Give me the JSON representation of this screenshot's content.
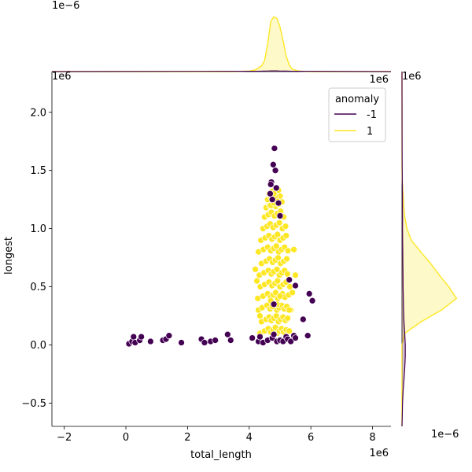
{
  "chart_data": {
    "type": "scatter",
    "kind": "jointplot",
    "xlabel": "total_length",
    "ylabel": "longest",
    "x_offset_text": "1e6",
    "y_offset_text": "1e6",
    "top_marginal_offset_text": "1e−6",
    "right_marginal_offset_text": "1e−6",
    "xlim": [
      -2.4,
      8.6
    ],
    "ylim": [
      -0.7,
      2.35
    ],
    "x_ticks": [
      -2,
      0,
      2,
      4,
      6,
      8
    ],
    "x_tick_labels": [
      "−2",
      "0",
      "2",
      "4",
      "6",
      "8"
    ],
    "y_ticks": [
      -0.5,
      0.0,
      0.5,
      1.0,
      1.5,
      2.0
    ],
    "y_tick_labels": [
      "−0.5",
      "0.0",
      "0.5",
      "1.0",
      "1.5",
      "2.0"
    ],
    "grid": false,
    "legend": {
      "title": "anomaly",
      "placement": "top-right",
      "entries": [
        {
          "label": "-1",
          "color": "#440154"
        },
        {
          "label": "1",
          "color": "#fde725"
        }
      ]
    },
    "series": [
      {
        "name": "1",
        "color": "#fde725",
        "x": [
          4.35,
          4.5,
          4.62,
          4.7,
          4.78,
          4.85,
          4.9,
          4.98,
          5.05,
          5.12,
          5.2,
          5.3,
          4.4,
          4.55,
          4.65,
          4.72,
          4.8,
          4.88,
          4.95,
          5.02,
          5.1,
          5.18,
          5.25,
          4.3,
          4.42,
          4.58,
          4.68,
          4.75,
          4.82,
          4.9,
          4.97,
          5.05,
          5.14,
          5.22,
          5.35,
          4.28,
          4.45,
          4.6,
          4.7,
          4.78,
          4.86,
          4.93,
          5.0,
          5.08,
          5.16,
          5.28,
          4.36,
          4.5,
          4.64,
          4.74,
          4.84,
          4.92,
          5.0,
          5.1,
          5.2,
          5.32,
          4.33,
          4.48,
          4.62,
          4.72,
          4.8,
          4.9,
          4.98,
          5.06,
          5.15,
          5.24,
          4.4,
          4.55,
          4.66,
          4.76,
          4.85,
          4.94,
          5.02,
          5.12,
          5.22,
          4.3,
          4.46,
          4.6,
          4.7,
          4.8,
          4.88,
          4.96,
          5.05,
          5.15,
          5.26,
          4.38,
          4.52,
          4.64,
          4.74,
          4.83,
          4.92,
          5.0,
          5.1,
          5.2,
          4.45,
          4.58,
          4.68,
          4.78,
          4.88,
          4.98,
          5.08,
          5.18,
          4.5,
          4.62,
          4.72,
          4.82,
          4.92,
          5.02,
          5.12,
          4.55,
          4.66,
          4.76,
          4.86,
          4.96,
          5.06,
          4.6,
          4.7,
          4.8,
          4.9,
          5.0,
          4.65,
          4.75,
          4.85,
          4.95,
          4.7,
          4.8,
          4.9,
          4.75,
          4.85,
          4.8,
          5.45,
          5.5,
          4.25,
          4.2,
          5.4,
          4.35,
          5.3,
          4.9,
          4.7,
          5.0
        ],
        "y": [
          0.1,
          0.12,
          0.14,
          0.11,
          0.13,
          0.15,
          0.1,
          0.12,
          0.14,
          0.11,
          0.13,
          0.12,
          0.2,
          0.22,
          0.24,
          0.21,
          0.23,
          0.25,
          0.2,
          0.22,
          0.24,
          0.21,
          0.23,
          0.3,
          0.32,
          0.34,
          0.31,
          0.33,
          0.35,
          0.3,
          0.32,
          0.34,
          0.31,
          0.33,
          0.3,
          0.4,
          0.42,
          0.44,
          0.41,
          0.43,
          0.45,
          0.4,
          0.42,
          0.44,
          0.41,
          0.43,
          0.5,
          0.52,
          0.54,
          0.51,
          0.53,
          0.55,
          0.5,
          0.52,
          0.54,
          0.5,
          0.6,
          0.62,
          0.64,
          0.61,
          0.63,
          0.65,
          0.6,
          0.62,
          0.64,
          0.61,
          0.7,
          0.72,
          0.74,
          0.71,
          0.73,
          0.75,
          0.7,
          0.72,
          0.74,
          0.8,
          0.82,
          0.84,
          0.81,
          0.83,
          0.85,
          0.8,
          0.82,
          0.84,
          0.81,
          0.9,
          0.92,
          0.94,
          0.91,
          0.93,
          0.95,
          0.9,
          0.92,
          0.94,
          1.0,
          1.02,
          1.04,
          1.01,
          1.03,
          1.05,
          1.0,
          1.02,
          1.1,
          1.12,
          1.14,
          1.11,
          1.13,
          1.15,
          1.1,
          1.18,
          1.2,
          1.22,
          1.19,
          1.21,
          1.23,
          1.25,
          1.27,
          1.29,
          1.26,
          1.28,
          1.3,
          1.32,
          1.31,
          1.33,
          1.2,
          1.22,
          1.24,
          1.26,
          1.28,
          1.3,
          0.82,
          0.6,
          0.55,
          0.65,
          0.45,
          0.25,
          0.3,
          0.35,
          0.38,
          0.42
        ]
      },
      {
        "name": "-1",
        "color": "#440154",
        "x": [
          0.1,
          0.2,
          0.25,
          0.3,
          0.45,
          0.5,
          0.8,
          1.2,
          1.3,
          1.4,
          1.8,
          2.45,
          2.55,
          2.75,
          2.9,
          3.3,
          3.4,
          4.1,
          4.3,
          4.35,
          4.45,
          4.6,
          4.75,
          4.8,
          4.9,
          5.0,
          5.1,
          5.2,
          5.25,
          5.35,
          5.45,
          5.5,
          5.9,
          4.68,
          4.72,
          4.78,
          4.82,
          4.7,
          4.75,
          4.85,
          4.88,
          4.95,
          5.0,
          5.3,
          5.5,
          5.75,
          5.95,
          6.05,
          4.8
        ],
        "y": [
          0.01,
          0.03,
          0.07,
          0.02,
          0.04,
          0.07,
          0.03,
          0.04,
          0.05,
          0.08,
          0.02,
          0.05,
          0.02,
          0.03,
          0.04,
          0.09,
          0.04,
          0.06,
          0.03,
          0.07,
          0.02,
          0.04,
          0.06,
          0.09,
          0.03,
          0.04,
          0.03,
          0.07,
          0.05,
          0.03,
          0.08,
          0.06,
          0.08,
          1.3,
          1.4,
          1.55,
          1.69,
          1.38,
          1.25,
          1.5,
          1.35,
          1.22,
          1.11,
          0.56,
          0.51,
          0.22,
          0.44,
          0.38,
          0.35
        ]
      }
    ],
    "marginal_top": {
      "x": [
        -2.4,
        3.5,
        4.0,
        4.2,
        4.4,
        4.5,
        4.6,
        4.7,
        4.8,
        4.9,
        5.0,
        5.1,
        5.2,
        5.3,
        5.4,
        5.6,
        6.0,
        8.6
      ],
      "density_1": [
        0,
        0,
        0.01,
        0.03,
        0.1,
        0.2,
        0.5,
        0.9,
        0.98,
        0.95,
        0.8,
        0.55,
        0.28,
        0.12,
        0.04,
        0.01,
        0,
        0
      ],
      "density_-1": [
        0,
        0.005,
        0.006,
        0.006,
        0.007,
        0.008,
        0.01,
        0.012,
        0.012,
        0.012,
        0.01,
        0.009,
        0.008,
        0.007,
        0.006,
        0.006,
        0.005,
        0
      ]
    },
    "marginal_right": {
      "y": [
        -0.7,
        -0.6,
        -0.5,
        -0.4,
        -0.3,
        -0.2,
        -0.1,
        0.0,
        0.1,
        0.2,
        0.3,
        0.4,
        0.5,
        0.6,
        0.7,
        0.8,
        0.9,
        1.0,
        1.1,
        1.2,
        1.3,
        1.4,
        1.5,
        1.6,
        1.8,
        2.35
      ],
      "density_1": [
        0,
        0,
        0,
        0,
        0,
        0,
        0,
        0,
        0.05,
        0.35,
        0.72,
        0.99,
        0.85,
        0.68,
        0.52,
        0.34,
        0.17,
        0.09,
        0.05,
        0.03,
        0.02,
        0.005,
        0,
        0,
        0,
        0
      ],
      "density_-1": [
        0,
        0.005,
        0.01,
        0.02,
        0.035,
        0.05,
        0.06,
        0.06,
        0.05,
        0.035,
        0.028,
        0.024,
        0.02,
        0.018,
        0.016,
        0.014,
        0.012,
        0.01,
        0.01,
        0.009,
        0.008,
        0.006,
        0.004,
        0.003,
        0.002,
        0
      ]
    }
  }
}
